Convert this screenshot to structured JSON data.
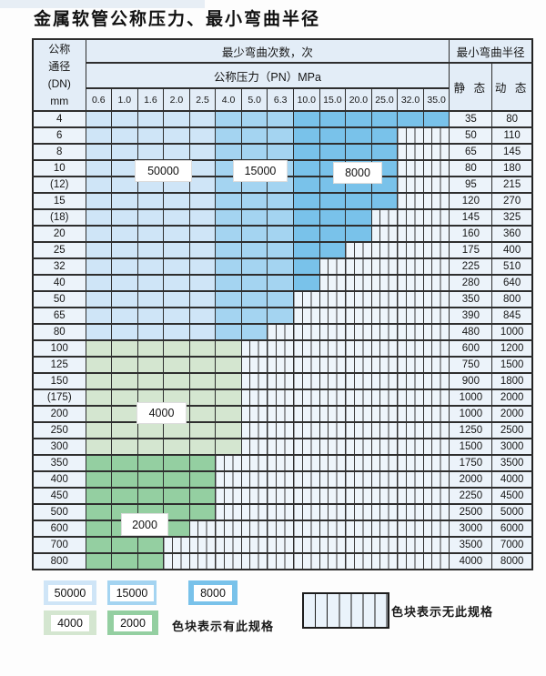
{
  "title": "金属软管公称压力、最小弯曲半径",
  "colors": {
    "zone_50000": "#cfe5f7",
    "zone_15000": "#a4d4f1",
    "zone_8000": "#79c2ea",
    "zone_4000": "#d4e6d0",
    "zone_2000": "#94cfa1",
    "empty_cell": "#eef5fb",
    "grid_line": "#2e2e2e",
    "header_bg": "#e3edf7",
    "label_col_bg": "#ecf3fa"
  },
  "table": {
    "header": {
      "dn_lines": [
        "公称",
        "通径",
        "(DN)",
        "mm"
      ],
      "cycles_header": "最少弯曲次数，次",
      "pressure_header": "公称压力（PN）MPa",
      "radius_header": "最小弯曲半径",
      "static_label": "静 态",
      "dynamic_label": "动 态",
      "pressures": [
        "0.6",
        "1.0",
        "1.6",
        "2.0",
        "2.5",
        "4.0",
        "5.0",
        "6.3",
        "10.0",
        "15.0",
        "20.0",
        "25.0",
        "32.0",
        "35.0"
      ]
    },
    "blue_zone_breaks": {
      "light_through": "2.5",
      "medium_through": "6.3"
    },
    "rows": [
      {
        "dn": "4",
        "palette": "blue",
        "colored_through_pn": "35.0",
        "static": "35",
        "dynamic": "80"
      },
      {
        "dn": "6",
        "palette": "blue",
        "colored_through_pn": "25.0",
        "static": "50",
        "dynamic": "110"
      },
      {
        "dn": "8",
        "palette": "blue",
        "colored_through_pn": "25.0",
        "static": "65",
        "dynamic": "145"
      },
      {
        "dn": "10",
        "palette": "blue",
        "colored_through_pn": "25.0",
        "static": "80",
        "dynamic": "180"
      },
      {
        "dn": "(12)",
        "palette": "blue",
        "colored_through_pn": "25.0",
        "static": "95",
        "dynamic": "215"
      },
      {
        "dn": "15",
        "palette": "blue",
        "colored_through_pn": "25.0",
        "static": "120",
        "dynamic": "270"
      },
      {
        "dn": "(18)",
        "palette": "blue",
        "colored_through_pn": "20.0",
        "static": "145",
        "dynamic": "325"
      },
      {
        "dn": "20",
        "palette": "blue",
        "colored_through_pn": "20.0",
        "static": "160",
        "dynamic": "360"
      },
      {
        "dn": "25",
        "palette": "blue",
        "colored_through_pn": "15.0",
        "static": "175",
        "dynamic": "400"
      },
      {
        "dn": "32",
        "palette": "blue",
        "colored_through_pn": "10.0",
        "static": "225",
        "dynamic": "510"
      },
      {
        "dn": "40",
        "palette": "blue",
        "colored_through_pn": "10.0",
        "static": "280",
        "dynamic": "640"
      },
      {
        "dn": "50",
        "palette": "blue",
        "colored_through_pn": "6.3",
        "static": "350",
        "dynamic": "800"
      },
      {
        "dn": "65",
        "palette": "blue",
        "colored_through_pn": "6.3",
        "static": "390",
        "dynamic": "845"
      },
      {
        "dn": "80",
        "palette": "blue",
        "colored_through_pn": "5.0",
        "static": "480",
        "dynamic": "1000"
      },
      {
        "dn": "100",
        "palette": "green4000",
        "colored_through_pn": "4.0",
        "static": "600",
        "dynamic": "1200"
      },
      {
        "dn": "125",
        "palette": "green4000",
        "colored_through_pn": "4.0",
        "static": "750",
        "dynamic": "1500"
      },
      {
        "dn": "150",
        "palette": "green4000",
        "colored_through_pn": "4.0",
        "static": "900",
        "dynamic": "1800"
      },
      {
        "dn": "(175)",
        "palette": "green4000",
        "colored_through_pn": "4.0",
        "static": "1000",
        "dynamic": "2000"
      },
      {
        "dn": "200",
        "palette": "green4000",
        "colored_through_pn": "4.0",
        "static": "1000",
        "dynamic": "2000"
      },
      {
        "dn": "250",
        "palette": "green4000",
        "colored_through_pn": "4.0",
        "static": "1250",
        "dynamic": "2500"
      },
      {
        "dn": "300",
        "palette": "green4000",
        "colored_through_pn": "4.0",
        "static": "1500",
        "dynamic": "3000"
      },
      {
        "dn": "350",
        "palette": "green2000",
        "colored_through_pn": "2.5",
        "static": "1750",
        "dynamic": "3500"
      },
      {
        "dn": "400",
        "palette": "green2000",
        "colored_through_pn": "2.5",
        "static": "2000",
        "dynamic": "4000"
      },
      {
        "dn": "450",
        "palette": "green2000",
        "colored_through_pn": "2.5",
        "static": "2250",
        "dynamic": "4500"
      },
      {
        "dn": "500",
        "palette": "green2000",
        "colored_through_pn": "2.5",
        "static": "2500",
        "dynamic": "5000"
      },
      {
        "dn": "600",
        "palette": "green2000",
        "colored_through_pn": "2.0",
        "static": "3000",
        "dynamic": "6000"
      },
      {
        "dn": "700",
        "palette": "green2000",
        "colored_through_pn": "1.6",
        "static": "3500",
        "dynamic": "7000"
      },
      {
        "dn": "800",
        "palette": "green2000",
        "colored_through_pn": "1.6",
        "static": "4000",
        "dynamic": "8000"
      }
    ]
  },
  "overlay_labels": [
    {
      "text": "50000"
    },
    {
      "text": "15000"
    },
    {
      "text": "8000"
    },
    {
      "text": "4000"
    },
    {
      "text": "2000"
    }
  ],
  "legend": {
    "has_spec_items": [
      {
        "label": "50000",
        "color_ref": "zone_50000"
      },
      {
        "label": "15000",
        "color_ref": "zone_15000"
      },
      {
        "label": "8000",
        "color_ref": "zone_8000"
      },
      {
        "label": "4000",
        "color_ref": "zone_4000"
      },
      {
        "label": "2000",
        "color_ref": "zone_2000"
      }
    ],
    "has_spec_text": "色块表示有此规格",
    "no_spec_text": "色块表示无此规格"
  }
}
